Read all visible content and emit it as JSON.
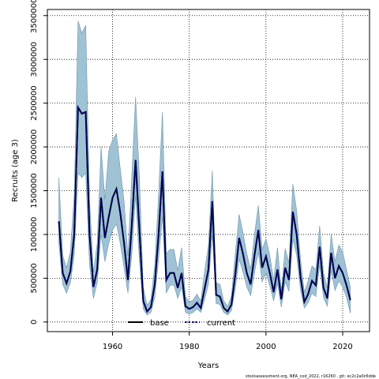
{
  "chart_data": {
    "type": "line",
    "xlabel": "Years",
    "ylabel": "Recruits (age 3)",
    "xlim": [
      1943,
      2027
    ],
    "ylim": [
      -110000,
      3570000
    ],
    "grid": true,
    "legend_position": "bottom-center",
    "x_ticks": [
      1960,
      1980,
      2000,
      2020
    ],
    "y_ticks": [
      0,
      500000,
      1000000,
      1500000,
      2000000,
      2500000,
      3000000,
      3500000
    ],
    "x_tick_labels": [
      "1960",
      "1980",
      "2000",
      "2020"
    ],
    "y_tick_labels": [
      "0",
      "500000",
      "1000000",
      "1500000",
      "2000000",
      "2500000",
      "3000000",
      "3500000"
    ],
    "band_color": "#9fc2d4",
    "band_edge_color": "#6a96ad",
    "current_color": "#00008b",
    "base_color": "#000000",
    "x": [
      1946,
      1947,
      1948,
      1949,
      1950,
      1951,
      1952,
      1953,
      1954,
      1955,
      1956,
      1957,
      1958,
      1959,
      1960,
      1961,
      1962,
      1963,
      1964,
      1965,
      1966,
      1967,
      1968,
      1969,
      1970,
      1971,
      1972,
      1973,
      1974,
      1975,
      1976,
      1977,
      1978,
      1979,
      1980,
      1981,
      1982,
      1983,
      1984,
      1985,
      1986,
      1987,
      1988,
      1989,
      1990,
      1991,
      1992,
      1993,
      1994,
      1995,
      1996,
      1997,
      1998,
      1999,
      2000,
      2001,
      2002,
      2003,
      2004,
      2005,
      2006,
      2007,
      2008,
      2009,
      2010,
      2011,
      2012,
      2013,
      2014,
      2015,
      2016,
      2017,
      2018,
      2019,
      2020,
      2021,
      2022
    ],
    "series": [
      {
        "name": "base",
        "values": [
          1150000,
          560000,
          440000,
          580000,
          1000000,
          2450000,
          2380000,
          2400000,
          1000000,
          400000,
          600000,
          1420000,
          960000,
          1200000,
          1420000,
          1520000,
          1250000,
          900000,
          480000,
          1100000,
          1850000,
          1050000,
          240000,
          120000,
          170000,
          430000,
          1000000,
          1720000,
          480000,
          560000,
          560000,
          390000,
          560000,
          180000,
          150000,
          170000,
          220000,
          160000,
          380000,
          600000,
          1380000,
          310000,
          290000,
          160000,
          120000,
          200000,
          540000,
          960000,
          780000,
          560000,
          430000,
          760000,
          1050000,
          620000,
          750000,
          560000,
          340000,
          600000,
          260000,
          620000,
          480000,
          1260000,
          1000000,
          520000,
          230000,
          320000,
          470000,
          420000,
          860000,
          390000,
          270000,
          790000,
          500000,
          640000,
          560000,
          420000,
          250000
        ]
      },
      {
        "name": "current",
        "values": [
          1150000,
          560000,
          440000,
          580000,
          1000000,
          2450000,
          2380000,
          2400000,
          1000000,
          400000,
          600000,
          1420000,
          960000,
          1200000,
          1420000,
          1520000,
          1250000,
          900000,
          480000,
          1100000,
          1850000,
          1050000,
          240000,
          120000,
          170000,
          430000,
          1000000,
          1720000,
          480000,
          560000,
          560000,
          390000,
          560000,
          180000,
          150000,
          170000,
          220000,
          160000,
          380000,
          600000,
          1380000,
          310000,
          290000,
          160000,
          120000,
          200000,
          540000,
          960000,
          780000,
          560000,
          430000,
          760000,
          1050000,
          620000,
          750000,
          560000,
          340000,
          600000,
          260000,
          620000,
          480000,
          1260000,
          1000000,
          520000,
          230000,
          320000,
          470000,
          420000,
          860000,
          390000,
          270000,
          790000,
          500000,
          640000,
          560000,
          420000,
          250000
        ]
      }
    ],
    "band": {
      "lower": [
        900000,
        430000,
        330000,
        450000,
        760000,
        1700000,
        1650000,
        1700000,
        650000,
        270000,
        450000,
        1000000,
        690000,
        900000,
        1050000,
        1120000,
        900000,
        620000,
        330000,
        760000,
        1450000,
        700000,
        150000,
        80000,
        110000,
        280000,
        720000,
        1200000,
        330000,
        420000,
        420000,
        270000,
        400000,
        110000,
        90000,
        110000,
        150000,
        110000,
        260000,
        430000,
        1000000,
        210000,
        200000,
        110000,
        80000,
        130000,
        380000,
        720000,
        570000,
        400000,
        300000,
        560000,
        800000,
        460000,
        560000,
        410000,
        240000,
        440000,
        170000,
        460000,
        350000,
        950000,
        760000,
        370000,
        160000,
        220000,
        330000,
        290000,
        650000,
        280000,
        180000,
        590000,
        360000,
        470000,
        400000,
        280000,
        100000
      ],
      "upper": [
        1650000,
        760000,
        620000,
        800000,
        1450000,
        3440000,
        3300000,
        3390000,
        1400000,
        560000,
        900000,
        2000000,
        1400000,
        1950000,
        2080000,
        2150000,
        1750000,
        1380000,
        750000,
        1650000,
        2570000,
        1650000,
        400000,
        190000,
        260000,
        650000,
        1450000,
        2400000,
        780000,
        830000,
        830000,
        590000,
        850000,
        290000,
        230000,
        250000,
        320000,
        240000,
        580000,
        880000,
        1730000,
        450000,
        430000,
        240000,
        180000,
        300000,
        780000,
        1230000,
        1020000,
        780000,
        600000,
        1000000,
        1330000,
        830000,
        950000,
        760000,
        480000,
        850000,
        360000,
        840000,
        680000,
        1580000,
        1270000,
        720000,
        340000,
        470000,
        640000,
        600000,
        1100000,
        560000,
        390000,
        1000000,
        690000,
        880000,
        800000,
        600000,
        400000
      ]
    }
  },
  "legend": {
    "base_label": "base",
    "current_label": "current"
  },
  "footer": {
    "credit": "stockassessment.org,  NEA_cod_2022,  r16260 ,  git:  ec2c2a0c6dde"
  }
}
